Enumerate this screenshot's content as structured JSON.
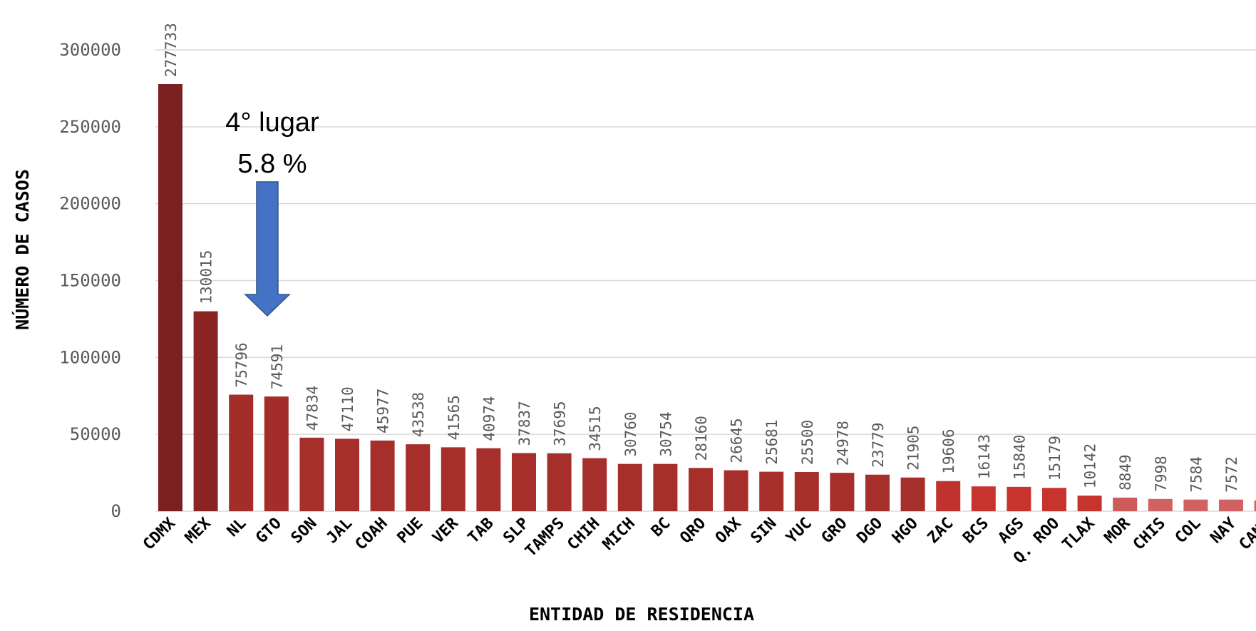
{
  "chart_data": {
    "type": "bar",
    "xlabel": "ENTIDAD DE RESIDENCIA",
    "ylabel": "NÚMERO DE CASOS",
    "ylim": [
      0,
      300000
    ],
    "yticks": [
      0,
      50000,
      100000,
      150000,
      200000,
      250000,
      300000
    ],
    "grid": true,
    "categories": [
      "CDMX",
      "MEX",
      "NL",
      "GTO",
      "SON",
      "JAL",
      "COAH",
      "PUE",
      "VER",
      "TAB",
      "SLP",
      "TAMPS",
      "CHIH",
      "MICH",
      "BC",
      "QRO",
      "OAX",
      "SIN",
      "YUC",
      "GRO",
      "DGO",
      "HGO",
      "ZAC",
      "BCS",
      "AGS",
      "Q. ROO",
      "TLAX",
      "MOR",
      "CHIS",
      "COL",
      "NAY",
      "CAMP"
    ],
    "values": [
      277733,
      130015,
      75796,
      74591,
      47834,
      47110,
      45977,
      43538,
      41565,
      40974,
      37837,
      37695,
      34515,
      30760,
      30754,
      28160,
      26645,
      25681,
      25500,
      24978,
      23779,
      21905,
      19606,
      16143,
      15840,
      15179,
      10142,
      8849,
      7998,
      7584,
      7572,
      7043
    ],
    "colors": [
      "#7b2021",
      "#8b2524",
      "#a22d2a",
      "#a22d2a",
      "#a62f2b",
      "#a62f2b",
      "#a62f2b",
      "#a62f2b",
      "#a62f2b",
      "#a62f2b",
      "#a62f2b",
      "#a62f2b",
      "#a62f2b",
      "#a62f2b",
      "#a62f2b",
      "#a62f2b",
      "#a62f2b",
      "#a62f2b",
      "#a62f2b",
      "#a62f2b",
      "#a62f2b",
      "#a62f2b",
      "#c0322d",
      "#c7342e",
      "#c7342e",
      "#c7342e",
      "#c7342e",
      "#cf5a5a",
      "#d06262",
      "#d06262",
      "#d06262",
      "#d06262"
    ],
    "annotation": {
      "line1": "4° lugar",
      "line2": "5.8 %",
      "target_category": "GTO",
      "arrow_color": "#4472c4"
    }
  }
}
